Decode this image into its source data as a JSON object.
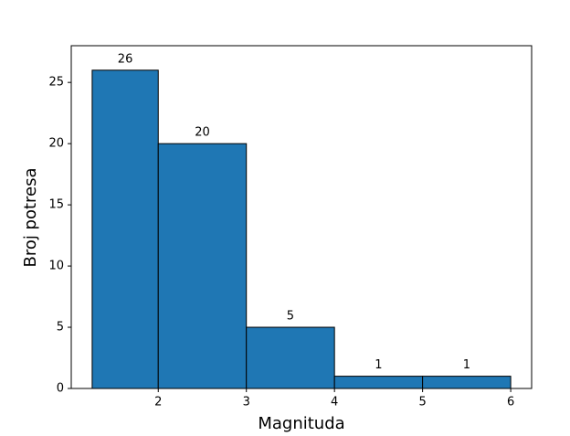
{
  "chart_data": {
    "type": "histogram",
    "x_label": "Magnituda",
    "y_label": "Broj potresa",
    "bins": [
      1.25,
      2,
      3,
      4,
      5,
      6
    ],
    "values": [
      26,
      20,
      5,
      1,
      1
    ],
    "color": "#1f77b4",
    "edgecolor": "#000000",
    "xlim": [
      1.0125,
      6.2375
    ],
    "xticks": [
      2,
      3,
      4,
      5,
      6
    ],
    "ylim": [
      0,
      28
    ],
    "yticks": [
      0,
      5,
      10,
      15,
      20,
      25
    ],
    "grid": false
  }
}
